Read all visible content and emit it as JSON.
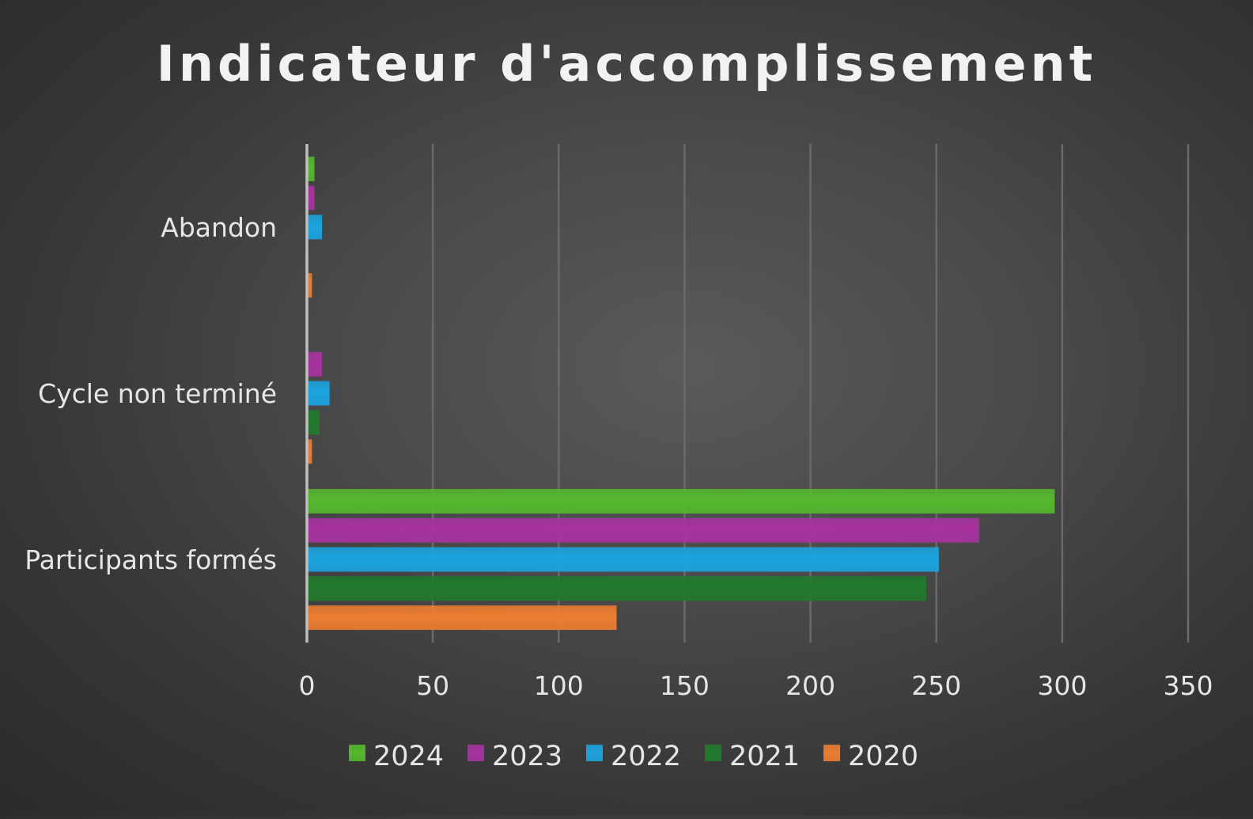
{
  "chart_data": {
    "type": "bar",
    "orientation": "horizontal",
    "title": "Indicateur d'accomplissement",
    "xlabel": "",
    "ylabel": "",
    "categories": [
      "Participants formés",
      "Cycle non terminé",
      "Abandon"
    ],
    "xlim": [
      0,
      350
    ],
    "x_ticks": [
      0,
      50,
      100,
      150,
      200,
      250,
      300,
      350
    ],
    "grid": true,
    "legend_position": "bottom",
    "series": [
      {
        "name": "2020",
        "color": "#ED7D31",
        "values": [
          123,
          2,
          2
        ]
      },
      {
        "name": "2021",
        "color": "#217A2C",
        "values": [
          246,
          5,
          0
        ]
      },
      {
        "name": "2022",
        "color": "#1BA4DF",
        "values": [
          251,
          9,
          6
        ]
      },
      {
        "name": "2023",
        "color": "#A832A0",
        "values": [
          267,
          6,
          3
        ]
      },
      {
        "name": "2024",
        "color": "#55B82E",
        "values": [
          297,
          0,
          3
        ]
      }
    ],
    "legend_order": [
      "2024",
      "2023",
      "2022",
      "2021",
      "2020"
    ],
    "colors": {
      "background": "#444444",
      "title": "#F2F2F2",
      "tick_label": "#E6E6E6",
      "gridline": "#6A6A6A",
      "axis_line": "#BFBFBF"
    }
  }
}
